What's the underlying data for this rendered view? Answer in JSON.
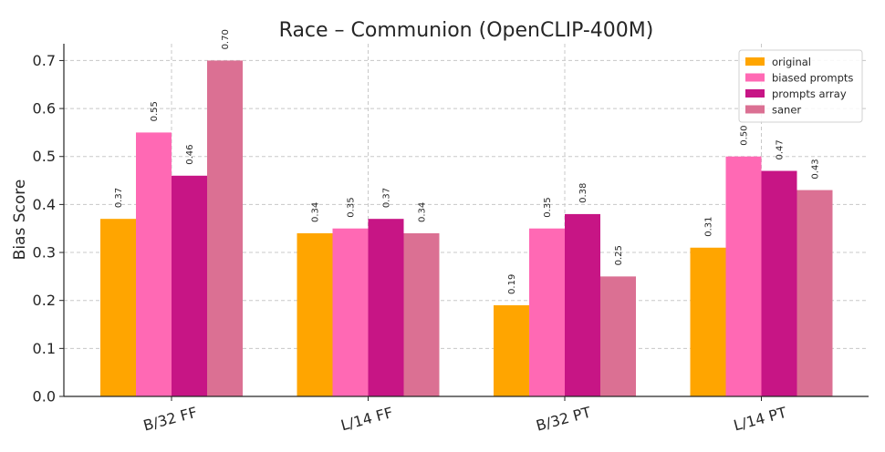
{
  "chart_data": {
    "type": "bar",
    "title": "Race – Communion (OpenCLIP-400M)",
    "xlabel": "",
    "ylabel": "Bias Score",
    "ylim": [
      0,
      0.735
    ],
    "yticks": [
      "0.0",
      "0.1",
      "0.2",
      "0.3",
      "0.4",
      "0.5",
      "0.6",
      "0.7"
    ],
    "ytick_values": [
      0,
      0.1,
      0.2,
      0.3,
      0.4,
      0.5,
      0.6,
      0.7
    ],
    "categories": [
      "B/32 FF",
      "L/14 FF",
      "B/32 PT",
      "L/14 PT"
    ],
    "series": [
      {
        "name": "original",
        "color": "#FFA500",
        "values": [
          0.37,
          0.34,
          0.19,
          0.31
        ],
        "labels": [
          "0.37",
          "0.34",
          "0.19",
          "0.31"
        ]
      },
      {
        "name": "biased prompts",
        "color": "#FF69B4",
        "values": [
          0.55,
          0.35,
          0.35,
          0.5
        ],
        "labels": [
          "0.55",
          "0.35",
          "0.35",
          "0.50"
        ]
      },
      {
        "name": "prompts array",
        "color": "#C71585",
        "values": [
          0.46,
          0.37,
          0.38,
          0.47
        ],
        "labels": [
          "0.46",
          "0.37",
          "0.38",
          "0.47"
        ]
      },
      {
        "name": "saner",
        "color": "#DB7093",
        "values": [
          0.7,
          0.34,
          0.25,
          0.43
        ],
        "labels": [
          "0.70",
          "0.34",
          "0.25",
          "0.43"
        ]
      }
    ],
    "grid": true,
    "legend_position": "top-right"
  }
}
